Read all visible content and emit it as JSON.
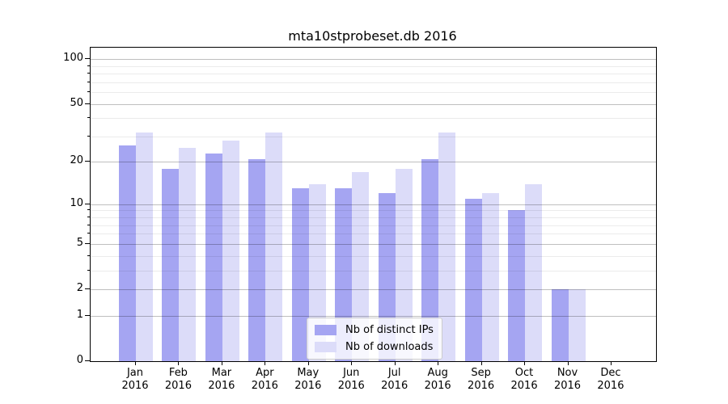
{
  "chart_data": {
    "type": "bar",
    "title": "mta10stprobeset.db 2016",
    "y_scale": "log1p",
    "categories": [
      "Jan",
      "Feb",
      "Mar",
      "Apr",
      "May",
      "Jun",
      "Jul",
      "Aug",
      "Sep",
      "Oct",
      "Nov",
      "Dec"
    ],
    "x_year_label": "2016",
    "series": [
      {
        "name": "Nb of distinct IPs",
        "color": "#a5a5f2",
        "values": [
          26,
          18,
          23,
          21,
          13,
          13,
          12,
          21,
          11,
          9,
          2,
          0
        ]
      },
      {
        "name": "Nb of downloads",
        "color": "#dcdcf9",
        "values": [
          32,
          25,
          28,
          32,
          14,
          17,
          18,
          32,
          12,
          14,
          2,
          0
        ]
      }
    ],
    "y_ticks": [
      100,
      50,
      20,
      10,
      5,
      2,
      1,
      0
    ],
    "y_minor_gridlines": [
      3,
      4,
      6,
      7,
      8,
      9,
      30,
      40,
      60,
      70,
      80,
      90
    ],
    "ylim": [
      0,
      119
    ],
    "grid": true,
    "legend_position": "lower center"
  },
  "colors": {
    "spine": "#000000",
    "major_grid": "rgba(0,0,0,0.25)",
    "minor_grid": "rgba(0,0,0,0.08)",
    "legend_border": "#cccccc",
    "legend_background": "rgba(255,255,255,0.8)",
    "text": "#000000"
  }
}
